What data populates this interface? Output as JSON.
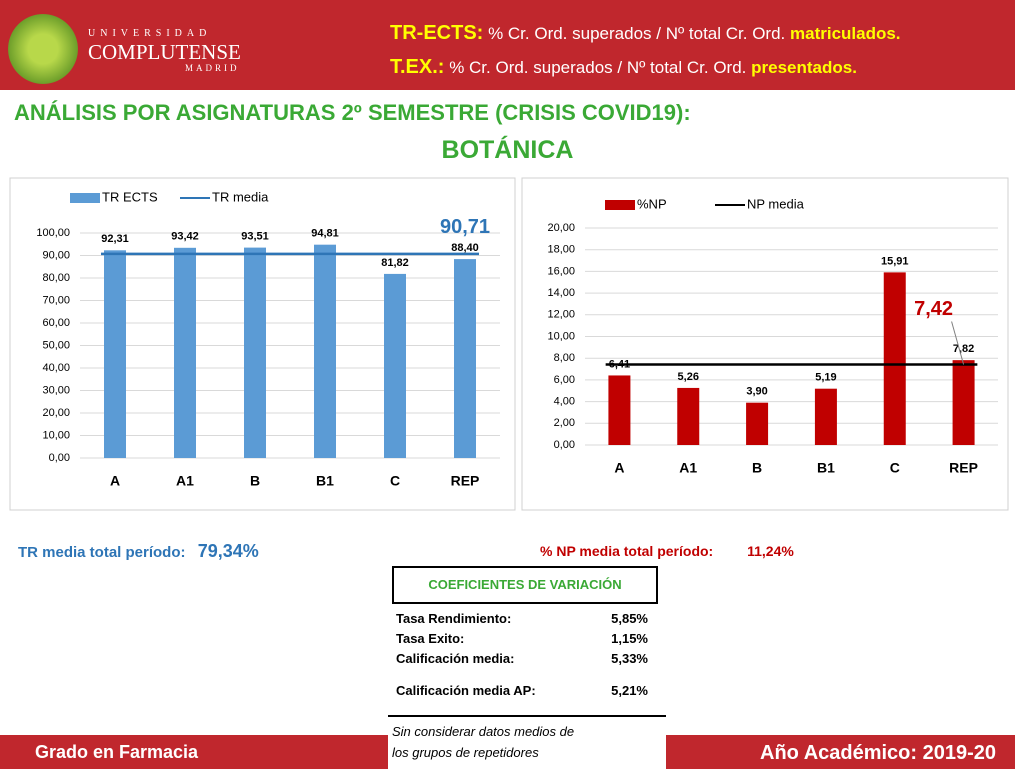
{
  "header": {
    "logo_top": "UNIVERSIDAD",
    "logo_main": "COMPLUTENSE",
    "logo_bottom": "MADRID",
    "def1_term": "TR-ECTS:",
    "def1_text": "% Cr. Ord. superados / Nº total Cr. Ord.",
    "def1_end": "matriculados.",
    "def2_term": "T.EX.:",
    "def2_text": "% Cr. Ord. superados / Nº total Cr. Ord.",
    "def2_end": "presentados."
  },
  "title": "ANÁLISIS POR ASIGNATURAS 2º SEMESTRE (CRISIS COVID19):",
  "subtitle": "BOTÁNICA",
  "chart_data": [
    {
      "type": "bar",
      "categories": [
        "A",
        "A1",
        "B",
        "B1",
        "C",
        "REP"
      ],
      "series": [
        {
          "name": "TR ECTS",
          "color": "#5b9bd5",
          "values": [
            92.31,
            93.42,
            93.51,
            94.81,
            81.82,
            88.4
          ],
          "value_labels": [
            "92,31",
            "93,42",
            "93,51",
            "94,81",
            "81,82",
            "88,40"
          ]
        }
      ],
      "reference_line": {
        "name": "TR media",
        "color": "#2e75b6",
        "value": 90.71,
        "value_label": "90,71"
      },
      "ylim": [
        0,
        100
      ],
      "yticks": [
        {
          "value": 0,
          "label": "0,00"
        },
        {
          "value": 10,
          "label": "10,00"
        },
        {
          "value": 20,
          "label": "20,00"
        },
        {
          "value": 30,
          "label": "30,00"
        },
        {
          "value": 40,
          "label": "40,00"
        },
        {
          "value": 50,
          "label": "50,00"
        },
        {
          "value": 60,
          "label": "60,00"
        },
        {
          "value": 70,
          "label": "70,00"
        },
        {
          "value": 80,
          "label": "80,00"
        },
        {
          "value": 90,
          "label": "90,00"
        },
        {
          "value": 100,
          "label": "100,00"
        }
      ],
      "grid": true
    },
    {
      "type": "bar",
      "categories": [
        "A",
        "A1",
        "B",
        "B1",
        "C",
        "REP"
      ],
      "series": [
        {
          "name": "%NP",
          "color": "#c00000",
          "values": [
            6.41,
            5.26,
            3.9,
            5.19,
            15.91,
            7.82
          ],
          "value_labels": [
            "6,41",
            "5,26",
            "3,90",
            "5,19",
            "15,91",
            "7,82"
          ]
        }
      ],
      "reference_line": {
        "name": "NP media",
        "color": "#000000",
        "value": 7.42,
        "value_label": "7,42"
      },
      "ylim": [
        0,
        20
      ],
      "yticks": [
        {
          "value": 0,
          "label": "0,00"
        },
        {
          "value": 2,
          "label": "2,00"
        },
        {
          "value": 4,
          "label": "4,00"
        },
        {
          "value": 6,
          "label": "6,00"
        },
        {
          "value": 8,
          "label": "8,00"
        },
        {
          "value": 10,
          "label": "10,00"
        },
        {
          "value": 12,
          "label": "12,00"
        },
        {
          "value": 14,
          "label": "14,00"
        },
        {
          "value": 16,
          "label": "16,00"
        },
        {
          "value": 18,
          "label": "18,00"
        },
        {
          "value": 20,
          "label": "20,00"
        }
      ],
      "grid": true
    }
  ],
  "summary": {
    "tr_label": "TR media total período:",
    "tr_value": "79,34%",
    "np_label": "% NP media total período:",
    "np_value": "11,24%"
  },
  "coefficients": {
    "title": "COEFICIENTES DE VARIACIÓN",
    "rows": [
      [
        "Tasa Rendimiento:",
        "5,85%"
      ],
      [
        "Tasa Exito:",
        "1,15%"
      ],
      [
        "Calificación media:",
        "5,33%"
      ],
      [
        "Calificación media AP:",
        "5,21%"
      ]
    ],
    "note": [
      "Sin considerar datos medios de",
      "los grupos de repetidores"
    ]
  },
  "footer": {
    "left": "Grado en Farmacia",
    "right": "Año Académico: 2019-20"
  }
}
